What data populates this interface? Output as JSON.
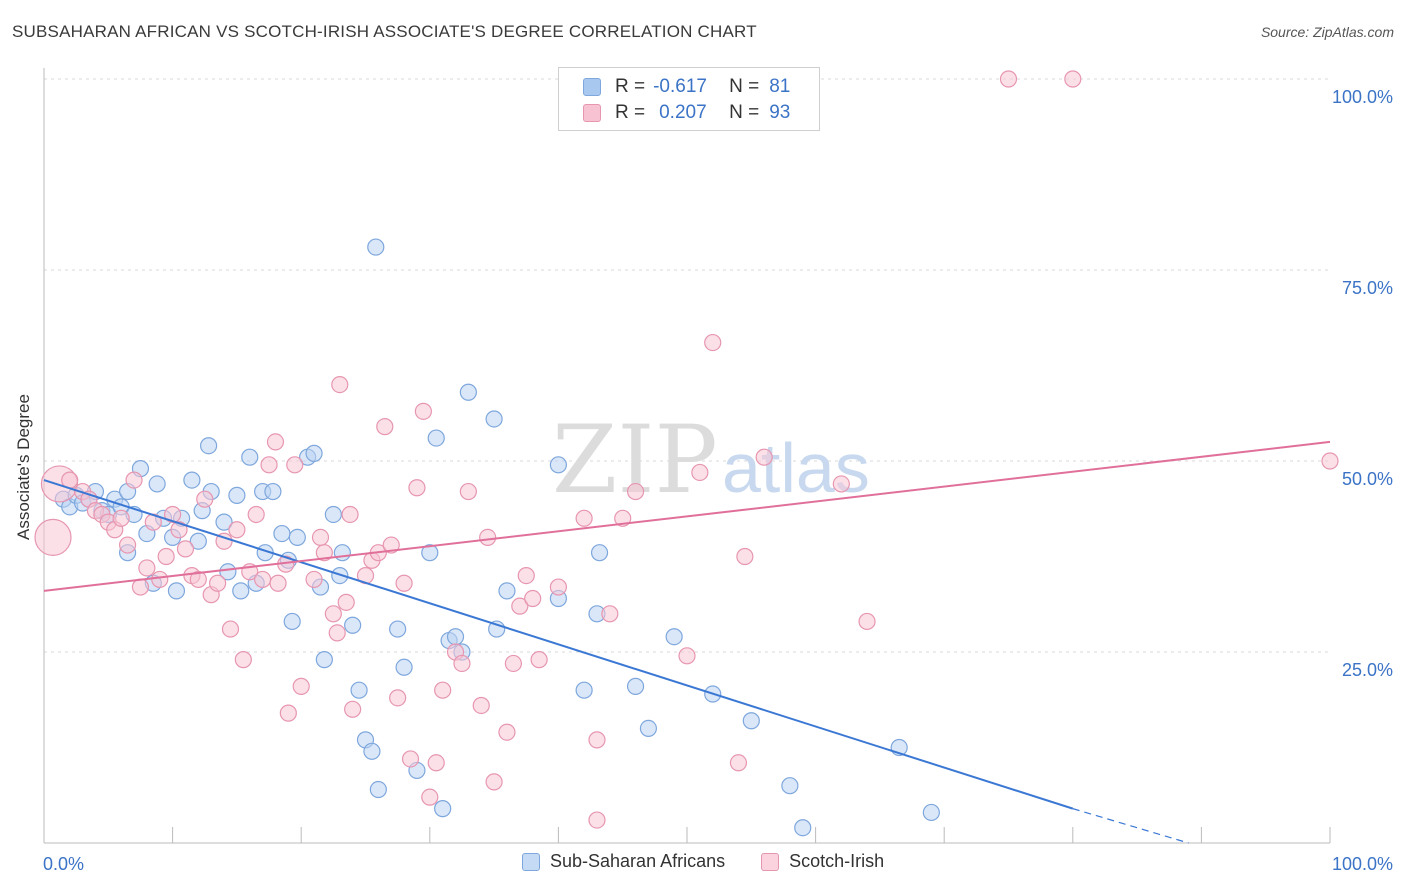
{
  "title": "SUBSAHARAN AFRICAN VS SCOTCH-IRISH ASSOCIATE'S DEGREE CORRELATION CHART",
  "source": "Source: ZipAtlas.com",
  "watermark": {
    "zip": "ZIP",
    "atlas": "atlas"
  },
  "legend": {
    "rows": [
      {
        "r_label": "R =",
        "r_value": "-0.617",
        "n_label": "N =",
        "n_value": "81",
        "color": "#a9c8f0",
        "border": "#7ea7dd"
      },
      {
        "r_label": "R =",
        "r_value": "0.207",
        "n_label": "N =",
        "n_value": "93",
        "color": "#f7c2d2",
        "border": "#e796b0"
      }
    ]
  },
  "bottom_legend": [
    {
      "label": "Sub-Saharan Africans",
      "color": "#c5daf5",
      "border": "#7ea7dd"
    },
    {
      "label": "Scotch-Irish",
      "color": "#fbd3df",
      "border": "#e796b0"
    }
  ],
  "chart_data": {
    "type": "scatter",
    "title": "SUBSAHARAN AFRICAN VS SCOTCH-IRISH ASSOCIATE'S DEGREE CORRELATION CHART",
    "xlabel": "",
    "ylabel": "Associate's Degree",
    "xlim": [
      0,
      100
    ],
    "ylim": [
      0,
      100
    ],
    "x_tick_labels": [
      "0.0%",
      "100.0%"
    ],
    "y_ticks": [
      25,
      50,
      75,
      100
    ],
    "y_tick_labels": [
      "25.0%",
      "50.0%",
      "75.0%",
      "100.0%"
    ],
    "grid": true,
    "legend_position": "top-center",
    "series": [
      {
        "name": "Sub-Saharan Africans",
        "color": "#7ea7dd",
        "fill": "#bcd4f3",
        "line_color": "#3b78d4",
        "trend": {
          "x": [
            0,
            80
          ],
          "y": [
            47.5,
            4.5
          ],
          "dashed_to": [
            89,
            0
          ]
        },
        "points": [
          [
            1.5,
            45
          ],
          [
            2,
            44
          ],
          [
            2.5,
            45.5
          ],
          [
            3,
            44.5
          ],
          [
            3.5,
            45
          ],
          [
            4,
            46
          ],
          [
            4.5,
            43.5
          ],
          [
            5,
            43
          ],
          [
            5.5,
            45
          ],
          [
            6,
            44
          ],
          [
            6.5,
            46
          ],
          [
            7,
            43
          ],
          [
            6.5,
            38
          ],
          [
            7.5,
            49
          ],
          [
            8,
            40.5
          ],
          [
            8.5,
            34
          ],
          [
            8.8,
            47
          ],
          [
            9.3,
            42.5
          ],
          [
            10,
            40
          ],
          [
            10.3,
            33
          ],
          [
            10.7,
            42.5
          ],
          [
            11.5,
            47.5
          ],
          [
            12,
            39.5
          ],
          [
            12.3,
            43.5
          ],
          [
            12.8,
            52
          ],
          [
            13,
            46
          ],
          [
            14,
            42
          ],
          [
            14.3,
            35.5
          ],
          [
            15,
            45.5
          ],
          [
            15.3,
            33
          ],
          [
            16,
            50.5
          ],
          [
            16.5,
            34
          ],
          [
            17,
            46
          ],
          [
            17.8,
            46
          ],
          [
            17.2,
            38
          ],
          [
            18.5,
            40.5
          ],
          [
            19,
            37
          ],
          [
            19.3,
            29
          ],
          [
            19.7,
            40
          ],
          [
            20.5,
            50.5
          ],
          [
            21,
            51
          ],
          [
            21.5,
            33.5
          ],
          [
            21.8,
            24
          ],
          [
            22.5,
            43
          ],
          [
            23,
            35
          ],
          [
            23.2,
            38
          ],
          [
            24,
            28.5
          ],
          [
            24.5,
            20
          ],
          [
            25,
            13.5
          ],
          [
            25.5,
            12
          ],
          [
            25.8,
            78
          ],
          [
            26,
            7
          ],
          [
            27.5,
            28
          ],
          [
            28,
            23
          ],
          [
            29,
            9.5
          ],
          [
            30,
            38
          ],
          [
            30.5,
            53
          ],
          [
            31,
            4.5
          ],
          [
            31.5,
            26.5
          ],
          [
            32,
            27
          ],
          [
            32.5,
            25
          ],
          [
            33,
            59
          ],
          [
            35,
            55.5
          ],
          [
            35.2,
            28
          ],
          [
            36,
            33
          ],
          [
            40,
            32
          ],
          [
            40,
            49.5
          ],
          [
            42,
            20
          ],
          [
            43,
            30
          ],
          [
            43.2,
            38
          ],
          [
            46,
            20.5
          ],
          [
            47,
            15
          ],
          [
            49,
            27
          ],
          [
            52,
            19.5
          ],
          [
            55,
            16
          ],
          [
            58,
            7.5
          ],
          [
            59,
            2
          ],
          [
            66.5,
            12.5
          ],
          [
            69,
            4
          ]
        ]
      },
      {
        "name": "Scotch-Irish",
        "color": "#e796b0",
        "fill": "#f8c6d5",
        "line_color": "#e0709a",
        "trend": {
          "x": [
            0,
            100
          ],
          "y": [
            33,
            52.5
          ]
        },
        "points": [
          [
            0.7,
            40
          ],
          [
            1.2,
            47
          ],
          [
            2,
            47.5
          ],
          [
            3,
            46
          ],
          [
            3.5,
            45
          ],
          [
            4,
            43.5
          ],
          [
            4.5,
            43
          ],
          [
            5,
            42
          ],
          [
            5.5,
            41
          ],
          [
            6,
            42.5
          ],
          [
            6.5,
            39
          ],
          [
            7,
            47.5
          ],
          [
            7.5,
            33.5
          ],
          [
            8,
            36
          ],
          [
            8.5,
            42
          ],
          [
            9,
            34.5
          ],
          [
            9.5,
            37.5
          ],
          [
            10,
            43
          ],
          [
            10.5,
            41
          ],
          [
            11,
            38.5
          ],
          [
            11.5,
            35
          ],
          [
            12,
            34.5
          ],
          [
            12.5,
            45
          ],
          [
            13,
            32.5
          ],
          [
            13.5,
            34
          ],
          [
            14,
            39.5
          ],
          [
            14.5,
            28
          ],
          [
            15,
            41
          ],
          [
            15.5,
            24
          ],
          [
            16,
            35.5
          ],
          [
            16.5,
            43
          ],
          [
            17,
            34.5
          ],
          [
            17.5,
            49.5
          ],
          [
            18,
            52.5
          ],
          [
            18.2,
            34
          ],
          [
            18.8,
            36.5
          ],
          [
            19,
            17
          ],
          [
            19.5,
            49.5
          ],
          [
            20,
            20.5
          ],
          [
            21,
            34.5
          ],
          [
            21.5,
            40
          ],
          [
            21.8,
            38
          ],
          [
            22.5,
            30
          ],
          [
            22.8,
            27.5
          ],
          [
            23,
            60
          ],
          [
            23.5,
            31.5
          ],
          [
            23.8,
            43
          ],
          [
            24,
            17.5
          ],
          [
            25,
            35
          ],
          [
            25.5,
            37
          ],
          [
            26,
            38
          ],
          [
            26.5,
            54.5
          ],
          [
            27,
            39
          ],
          [
            27.5,
            19
          ],
          [
            28,
            34
          ],
          [
            28.5,
            11
          ],
          [
            29,
            46.5
          ],
          [
            29.5,
            56.5
          ],
          [
            30,
            6
          ],
          [
            30.5,
            10.5
          ],
          [
            31,
            20
          ],
          [
            32,
            25
          ],
          [
            32.5,
            23.5
          ],
          [
            33,
            46
          ],
          [
            34,
            18
          ],
          [
            34.5,
            40
          ],
          [
            35,
            8
          ],
          [
            36,
            14.5
          ],
          [
            36.5,
            23.5
          ],
          [
            37,
            31
          ],
          [
            37.5,
            35
          ],
          [
            38,
            32
          ],
          [
            38.5,
            24
          ],
          [
            40,
            33.5
          ],
          [
            42,
            42.5
          ],
          [
            43,
            13.5
          ],
          [
            43,
            3
          ],
          [
            44,
            30
          ],
          [
            45,
            42.5
          ],
          [
            46,
            46
          ],
          [
            50,
            24.5
          ],
          [
            51,
            48.5
          ],
          [
            52,
            65.5
          ],
          [
            54,
            10.5
          ],
          [
            54.5,
            37.5
          ],
          [
            56,
            50.5
          ],
          [
            62,
            47
          ],
          [
            64,
            29
          ],
          [
            75,
            100
          ],
          [
            80,
            100
          ],
          [
            100,
            50
          ]
        ]
      }
    ]
  }
}
